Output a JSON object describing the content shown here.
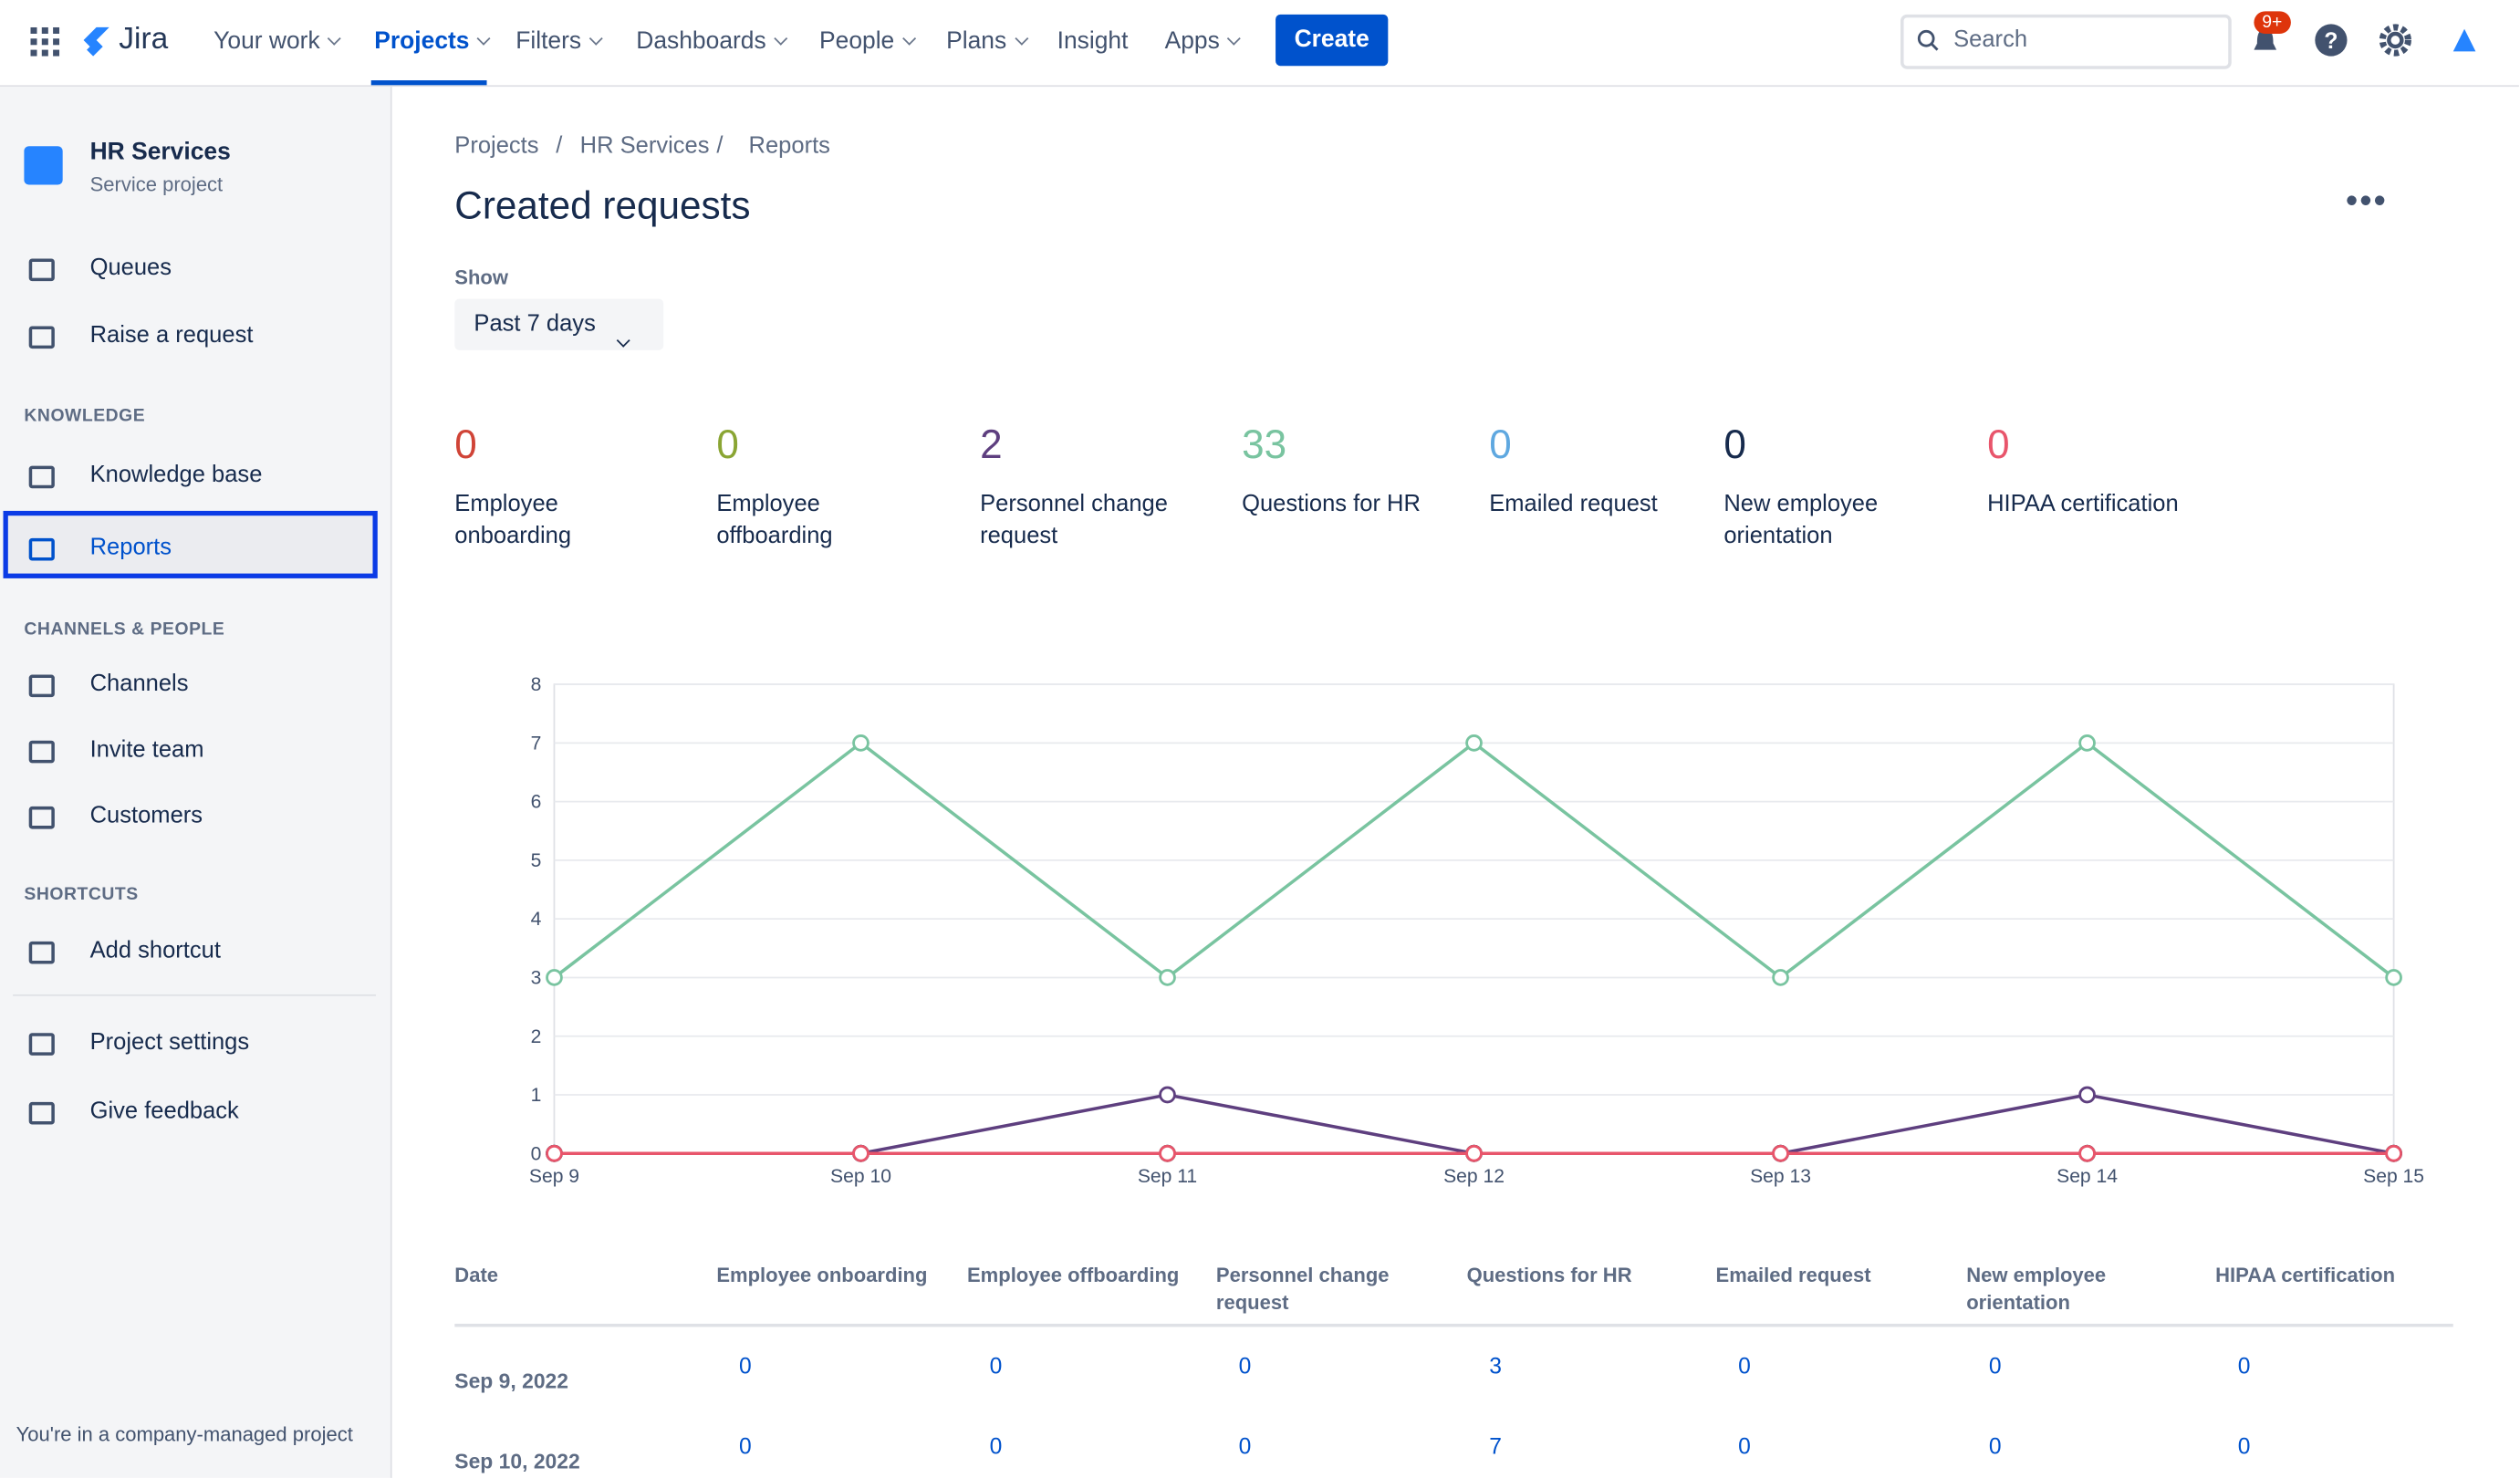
{
  "topnav": {
    "product": "Jira",
    "items": [
      "Your work",
      "Projects",
      "Filters",
      "Dashboards",
      "People",
      "Plans",
      "Insight",
      "Apps"
    ],
    "create": "Create",
    "search": "Search",
    "badge": "9+"
  },
  "sidebar": {
    "project_name": "HR Services",
    "project_type": "Service project",
    "items": [
      "Queues",
      "Raise a request"
    ],
    "knowledge_heading": "KNOWLEDGE",
    "knowledge_items": [
      "Knowledge base",
      "Reports"
    ],
    "channels_heading": "CHANNELS & PEOPLE",
    "channels_items": [
      "Channels",
      "Invite team",
      "Customers"
    ],
    "shortcuts_heading": "SHORTCUTS",
    "shortcuts_items": [
      "Add shortcut"
    ],
    "bottom_items": [
      "Project settings",
      "Give feedback"
    ],
    "footer": "You're in a company-managed project"
  },
  "breadcrumbs": [
    "Projects",
    "HR Services",
    "Reports"
  ],
  "page_title": "Created requests",
  "filter": {
    "label": "Show",
    "value": "Past 7 days"
  },
  "summary_counts": [
    0,
    0,
    2,
    33,
    0,
    0,
    0
  ],
  "chart_data": {
    "type": "line",
    "categories": [
      "Sep 9",
      "Sep 10",
      "Sep 11",
      "Sep 12",
      "Sep 13",
      "Sep 14",
      "Sep 15"
    ],
    "series": [
      {
        "name": "Employee onboarding",
        "color": "#d04437",
        "values": [
          0,
          0,
          0,
          0,
          0,
          0,
          0
        ]
      },
      {
        "name": "Employee offboarding",
        "color": "#8aa533",
        "values": [
          0,
          0,
          0,
          0,
          0,
          0,
          0
        ]
      },
      {
        "name": "Personnel change request",
        "color": "#5e3f7f",
        "values": [
          0,
          0,
          1,
          0,
          0,
          1,
          0
        ]
      },
      {
        "name": "Questions for HR",
        "color": "#79c4a0",
        "values": [
          3,
          7,
          3,
          7,
          3,
          7,
          3
        ]
      },
      {
        "name": "Emailed request",
        "color": "#5fa8e0",
        "values": [
          0,
          0,
          0,
          0,
          0,
          0,
          0
        ]
      },
      {
        "name": "New employee orientation",
        "color": "#172b4d",
        "values": [
          0,
          0,
          0,
          0,
          0,
          0,
          0
        ]
      },
      {
        "name": "HIPAA certification",
        "color": "#e8556b",
        "values": [
          0,
          0,
          0,
          0,
          0,
          0,
          0
        ]
      }
    ],
    "ylim": [
      0,
      8
    ],
    "yticks": [
      0,
      1,
      2,
      3,
      4,
      5,
      6,
      7,
      8
    ],
    "grid": true
  },
  "table": {
    "date_header": "Date",
    "rows": [
      {
        "date": "Sep 9, 2022",
        "values": [
          0,
          0,
          0,
          3,
          0,
          0,
          0
        ]
      },
      {
        "date": "Sep 10, 2022",
        "values": [
          0,
          0,
          0,
          7,
          0,
          0,
          0
        ]
      }
    ]
  }
}
